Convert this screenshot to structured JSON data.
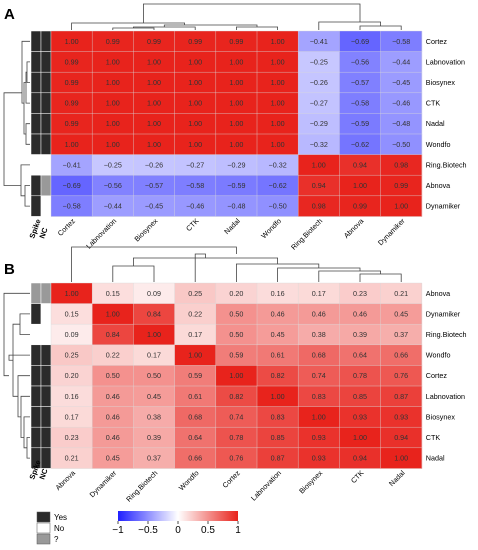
{
  "colors": {
    "neg": "#2020ff",
    "mid": "#ffffff",
    "pos": "#e8231c",
    "annot_yes": "#2b2b2b",
    "annot_no": "#ffffff",
    "annot_unknown": "#999999"
  },
  "legend": {
    "items": [
      {
        "label": "Yes",
        "color": "#2b2b2b"
      },
      {
        "label": "No",
        "color": "#ffffff"
      },
      {
        "label": "?",
        "color": "#999999"
      }
    ]
  },
  "colorbar": {
    "ticks": [
      "−1",
      "−0.5",
      "0",
      "0.5",
      "1"
    ],
    "range": [
      -1,
      1
    ]
  },
  "chart_data": [
    {
      "type": "heatmap",
      "panel_label": "A",
      "annotation_titles": [
        "Spike",
        "NC"
      ],
      "rows": [
        "Cortez",
        "Labnovation",
        "Biosynex",
        "CTK",
        "Nadal",
        "Wondfo",
        "Ring.Biotech",
        "Abnova",
        "Dynamiker"
      ],
      "cols": [
        "Cortez",
        "Labnovation",
        "Biosynex",
        "CTK",
        "Nadal",
        "Wondfo",
        "Ring.Biotech",
        "Abnova",
        "Dynamiker"
      ],
      "values": [
        [
          1.0,
          0.99,
          0.99,
          0.99,
          0.99,
          1.0,
          -0.41,
          -0.69,
          -0.58
        ],
        [
          0.99,
          1.0,
          1.0,
          1.0,
          1.0,
          1.0,
          -0.25,
          -0.56,
          -0.44
        ],
        [
          0.99,
          1.0,
          1.0,
          1.0,
          1.0,
          1.0,
          -0.26,
          -0.57,
          -0.45
        ],
        [
          0.99,
          1.0,
          1.0,
          1.0,
          1.0,
          1.0,
          -0.27,
          -0.58,
          -0.46
        ],
        [
          0.99,
          1.0,
          1.0,
          1.0,
          1.0,
          1.0,
          -0.29,
          -0.59,
          -0.48
        ],
        [
          1.0,
          1.0,
          1.0,
          1.0,
          1.0,
          1.0,
          -0.32,
          -0.62,
          -0.5
        ],
        [
          -0.41,
          -0.25,
          -0.26,
          -0.27,
          -0.29,
          -0.32,
          1.0,
          0.94,
          0.98
        ],
        [
          -0.69,
          -0.56,
          -0.57,
          -0.58,
          -0.59,
          -0.62,
          0.94,
          1.0,
          0.99
        ],
        [
          -0.58,
          -0.44,
          -0.45,
          -0.46,
          -0.48,
          -0.5,
          0.98,
          0.99,
          1.0
        ]
      ],
      "value_labels": [
        [
          "1.00",
          "0.99",
          "0.99",
          "0.99",
          "0.99",
          "1.00",
          "−0.41",
          "−0.69",
          "−0.58"
        ],
        [
          "0.99",
          "1.00",
          "1.00",
          "1.00",
          "1.00",
          "1.00",
          "−0.25",
          "−0.56",
          "−0.44"
        ],
        [
          "0.99",
          "1.00",
          "1.00",
          "1.00",
          "1.00",
          "1.00",
          "−0.26",
          "−0.57",
          "−0.45"
        ],
        [
          "0.99",
          "1.00",
          "1.00",
          "1.00",
          "1.00",
          "1.00",
          "−0.27",
          "−0.58",
          "−0.46"
        ],
        [
          "0.99",
          "1.00",
          "1.00",
          "1.00",
          "1.00",
          "1.00",
          "−0.29",
          "−0.59",
          "−0.48"
        ],
        [
          "1.00",
          "1.00",
          "1.00",
          "1.00",
          "1.00",
          "1.00",
          "−0.32",
          "−0.62",
          "−0.50"
        ],
        [
          "−0.41",
          "−0.25",
          "−0.26",
          "−0.27",
          "−0.29",
          "−0.32",
          "1.00",
          "0.94",
          "0.98"
        ],
        [
          "−0.69",
          "−0.56",
          "−0.57",
          "−0.58",
          "−0.59",
          "−0.62",
          "0.94",
          "1.00",
          "0.99"
        ],
        [
          "−0.58",
          "−0.44",
          "−0.45",
          "−0.46",
          "−0.48",
          "−0.50",
          "0.98",
          "0.99",
          "1.00"
        ]
      ],
      "annotations": {
        "spike": [
          "yes",
          "yes",
          "yes",
          "yes",
          "yes",
          "yes",
          "no",
          "yes",
          "yes"
        ],
        "nc": [
          "yes",
          "yes",
          "yes",
          "yes",
          "yes",
          "yes",
          "no",
          "unknown",
          "no"
        ]
      },
      "color_scale": [
        -1,
        1
      ]
    },
    {
      "type": "heatmap",
      "panel_label": "B",
      "annotation_titles": [
        "Spike",
        "NC"
      ],
      "rows": [
        "Abnova",
        "Dynamiker",
        "Ring.Biotech",
        "Wondfo",
        "Cortez",
        "Labnovation",
        "Biosynex",
        "CTK",
        "Nadal"
      ],
      "cols": [
        "Abnova",
        "Dynamiker",
        "Ring.Biotech",
        "Wondfo",
        "Cortez",
        "Labnovation",
        "Biosynex",
        "CTK",
        "Nadal"
      ],
      "values": [
        [
          1.0,
          0.15,
          0.09,
          0.25,
          0.2,
          0.16,
          0.17,
          0.23,
          0.21
        ],
        [
          0.15,
          1.0,
          0.84,
          0.22,
          0.5,
          0.46,
          0.46,
          0.46,
          0.45
        ],
        [
          0.09,
          0.84,
          1.0,
          0.17,
          0.5,
          0.45,
          0.38,
          0.39,
          0.37
        ],
        [
          0.25,
          0.22,
          0.17,
          1.0,
          0.59,
          0.61,
          0.68,
          0.64,
          0.66
        ],
        [
          0.2,
          0.5,
          0.5,
          0.59,
          1.0,
          0.82,
          0.74,
          0.78,
          0.76
        ],
        [
          0.16,
          0.46,
          0.45,
          0.61,
          0.82,
          1.0,
          0.83,
          0.85,
          0.87
        ],
        [
          0.17,
          0.46,
          0.38,
          0.68,
          0.74,
          0.83,
          1.0,
          0.93,
          0.93
        ],
        [
          0.23,
          0.46,
          0.39,
          0.64,
          0.78,
          0.85,
          0.93,
          1.0,
          0.94
        ],
        [
          0.21,
          0.45,
          0.37,
          0.66,
          0.76,
          0.87,
          0.93,
          0.94,
          1.0
        ]
      ],
      "value_labels": [
        [
          "1.00",
          "0.15",
          "0.09",
          "0.25",
          "0.20",
          "0.16",
          "0.17",
          "0.23",
          "0.21"
        ],
        [
          "0.15",
          "1.00",
          "0.84",
          "0.22",
          "0.50",
          "0.46",
          "0.46",
          "0.46",
          "0.45"
        ],
        [
          "0.09",
          "0.84",
          "1.00",
          "0.17",
          "0.50",
          "0.45",
          "0.38",
          "0.39",
          "0.37"
        ],
        [
          "0.25",
          "0.22",
          "0.17",
          "1.00",
          "0.59",
          "0.61",
          "0.68",
          "0.64",
          "0.66"
        ],
        [
          "0.20",
          "0.50",
          "0.50",
          "0.59",
          "1.00",
          "0.82",
          "0.74",
          "0.78",
          "0.76"
        ],
        [
          "0.16",
          "0.46",
          "0.45",
          "0.61",
          "0.82",
          "1.00",
          "0.83",
          "0.85",
          "0.87"
        ],
        [
          "0.17",
          "0.46",
          "0.38",
          "0.68",
          "0.74",
          "0.83",
          "1.00",
          "0.93",
          "0.93"
        ],
        [
          "0.23",
          "0.46",
          "0.39",
          "0.64",
          "0.78",
          "0.85",
          "0.93",
          "1.00",
          "0.94"
        ],
        [
          "0.21",
          "0.45",
          "0.37",
          "0.66",
          "0.76",
          "0.87",
          "0.93",
          "0.94",
          "1.00"
        ]
      ],
      "annotations": {
        "spike": [
          "unknown",
          "yes",
          "no",
          "yes",
          "yes",
          "yes",
          "yes",
          "yes",
          "yes"
        ],
        "nc": [
          "unknown",
          "no",
          "no",
          "yes",
          "yes",
          "yes",
          "yes",
          "yes",
          "yes"
        ]
      },
      "color_scale": [
        -1,
        1
      ]
    }
  ]
}
